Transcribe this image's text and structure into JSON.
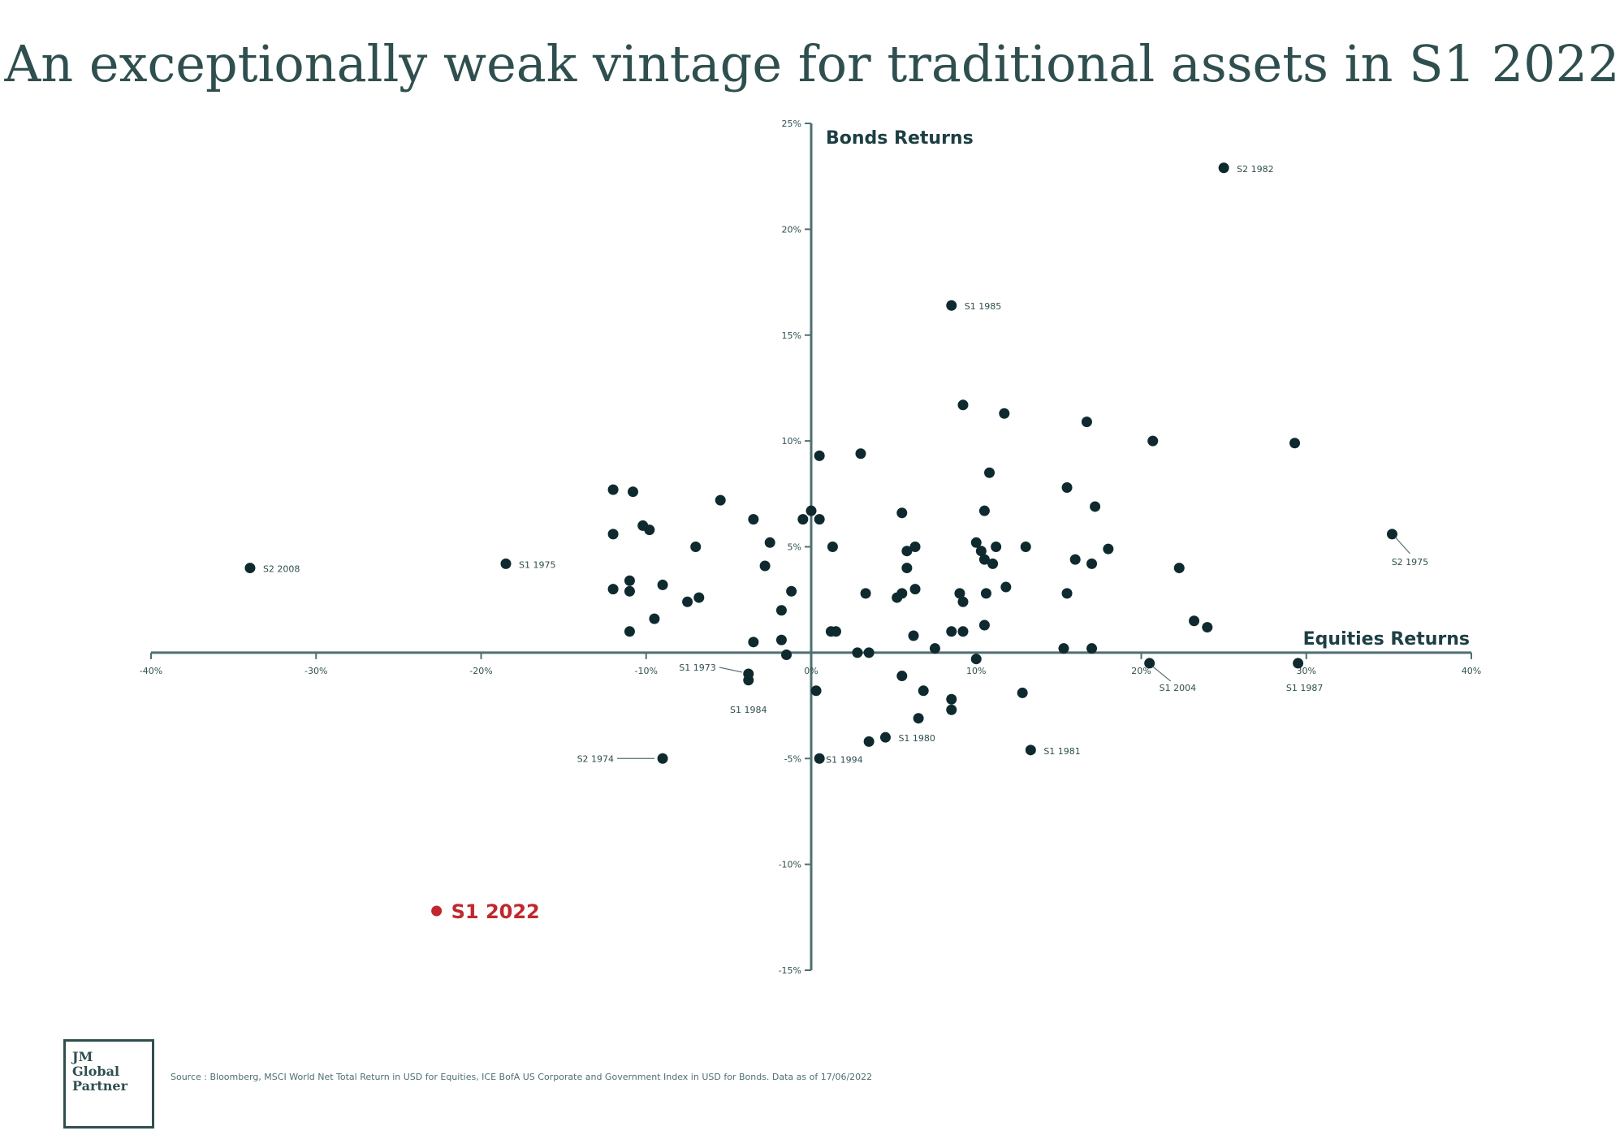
{
  "page": {
    "title": "An exceptionally weak vintage for traditional assets in S1 2022"
  },
  "chart_data": {
    "type": "scatter",
    "title": "An exceptionally weak vintage for traditional assets in S1 2022",
    "xlabel": "Equities Returns",
    "ylabel": "Bonds Returns",
    "xlim": [
      -40,
      40
    ],
    "ylim": [
      -15,
      25
    ],
    "x_ticks": [
      "-40%",
      "-30%",
      "-20%",
      "-10%",
      "0%",
      "10%",
      "20%",
      "30%",
      "40%"
    ],
    "y_ticks": [
      "-15%",
      "-10%",
      "-5%",
      "5%",
      "10%",
      "15%",
      "20%",
      "25%"
    ],
    "grid": false,
    "labeled_points": [
      {
        "label": "S2 1982",
        "x": 25,
        "y": 22.9
      },
      {
        "label": "S1 1985",
        "x": 8.5,
        "y": 16.4
      },
      {
        "label": "S2 2008",
        "x": -34,
        "y": 4.0
      },
      {
        "label": "S1 1975",
        "x": -18.5,
        "y": 4.2
      },
      {
        "label": "S2 1975",
        "x": 35.2,
        "y": 5.6
      },
      {
        "label": "S1 1973",
        "x": -3.8,
        "y": -1.0
      },
      {
        "label": "S1 1984",
        "x": -3.8,
        "y": -1.3
      },
      {
        "label": "S2 1974",
        "x": -9,
        "y": -5.0
      },
      {
        "label": "S1 1994",
        "x": 0.5,
        "y": -5.0
      },
      {
        "label": "S1 1980",
        "x": 4.5,
        "y": -4.0
      },
      {
        "label": "S1 1981",
        "x": 13.3,
        "y": -4.6
      },
      {
        "label": "S1 2004",
        "x": 20.5,
        "y": -0.5
      },
      {
        "label": "S1 1987",
        "x": 29.5,
        "y": -0.5
      }
    ],
    "highlight": {
      "label": "S1 2022",
      "x": -22.7,
      "y": -12.2,
      "color": "#c0282d"
    },
    "points": [
      [
        -12,
        7.7
      ],
      [
        -10.8,
        7.6
      ],
      [
        -12,
        5.6
      ],
      [
        -10.2,
        6.0
      ],
      [
        -9.8,
        5.8
      ],
      [
        -7,
        5.0
      ],
      [
        -5.5,
        7.2
      ],
      [
        -3.5,
        6.3
      ],
      [
        -11,
        3.4
      ],
      [
        -11,
        2.9
      ],
      [
        -12,
        3.0
      ],
      [
        -9,
        3.2
      ],
      [
        -7.5,
        2.4
      ],
      [
        -6.8,
        2.6
      ],
      [
        -9.5,
        1.6
      ],
      [
        -11,
        1.0
      ],
      [
        -2.5,
        5.2
      ],
      [
        -2.8,
        4.1
      ],
      [
        -1.8,
        2.0
      ],
      [
        -1.2,
        2.9
      ],
      [
        -1.8,
        0.6
      ],
      [
        -3.5,
        0.5
      ],
      [
        -1.5,
        -0.1
      ],
      [
        0.5,
        9.3
      ],
      [
        -0.5,
        6.3
      ],
      [
        0,
        6.7
      ],
      [
        0.5,
        6.3
      ],
      [
        1.3,
        5.0
      ],
      [
        1.2,
        1.0
      ],
      [
        1.5,
        1.0
      ],
      [
        2.8,
        0
      ],
      [
        3,
        9.4
      ],
      [
        3.3,
        2.8
      ],
      [
        3.5,
        0
      ],
      [
        0.3,
        -1.8
      ],
      [
        3.5,
        -4.2
      ],
      [
        5.5,
        6.6
      ],
      [
        5.8,
        4.8
      ],
      [
        6.3,
        5.0
      ],
      [
        5.8,
        4.0
      ],
      [
        5.5,
        2.8
      ],
      [
        6.3,
        3.0
      ],
      [
        5.2,
        2.6
      ],
      [
        6.2,
        0.8
      ],
      [
        7.5,
        0.2
      ],
      [
        8.5,
        1.0
      ],
      [
        9.2,
        1.0
      ],
      [
        9,
        2.8
      ],
      [
        9.2,
        2.4
      ],
      [
        10,
        5.2
      ],
      [
        10.3,
        4.8
      ],
      [
        10.5,
        4.4
      ],
      [
        10.5,
        6.7
      ],
      [
        10.8,
        8.5
      ],
      [
        11.2,
        5.0
      ],
      [
        11,
        4.2
      ],
      [
        10.6,
        2.8
      ],
      [
        11.8,
        3.1
      ],
      [
        10.5,
        1.3
      ],
      [
        9.2,
        11.7
      ],
      [
        11.7,
        11.3
      ],
      [
        10,
        -0.3
      ],
      [
        5.5,
        -1.1
      ],
      [
        6.8,
        -1.8
      ],
      [
        8.5,
        -2.2
      ],
      [
        8.5,
        -2.7
      ],
      [
        6.5,
        -3.1
      ],
      [
        13,
        5.0
      ],
      [
        12.8,
        -1.9
      ],
      [
        15.5,
        7.8
      ],
      [
        15.5,
        2.8
      ],
      [
        16,
        4.4
      ],
      [
        17,
        4.2
      ],
      [
        17.2,
        6.9
      ],
      [
        18,
        4.9
      ],
      [
        16.7,
        10.9
      ],
      [
        15.3,
        0.2
      ],
      [
        17,
        0.2
      ],
      [
        20.7,
        10.0
      ],
      [
        22.3,
        4.0
      ],
      [
        23.2,
        1.5
      ],
      [
        24,
        1.2
      ],
      [
        29.3,
        9.9
      ]
    ]
  },
  "logo": {
    "line1": "JM",
    "line2": "Global",
    "line3": "Partner"
  },
  "source": "Source : Bloomberg, MSCI World Net Total Return in USD for Equities, ICE BofA US Corporate and Government Index in USD for Bonds. Data as of 17/06/2022"
}
